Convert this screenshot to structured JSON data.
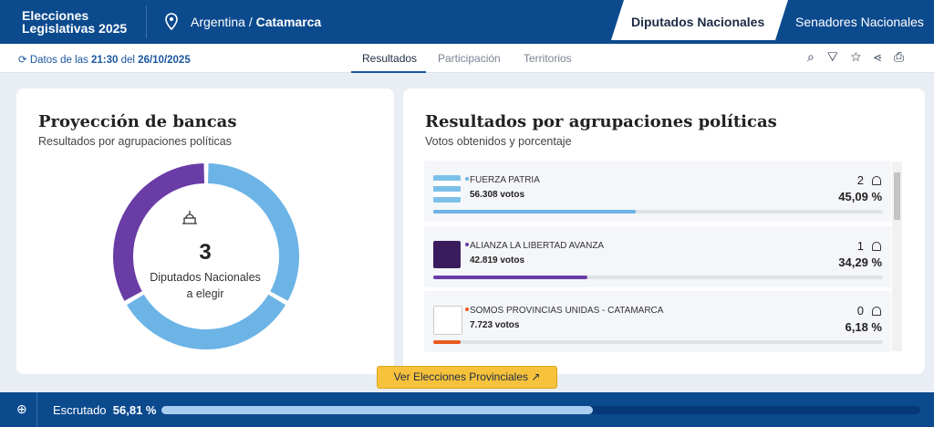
{
  "header": {
    "brand_line1": "Elecciones",
    "brand_line2": "Legislativas 2025",
    "country": "Argentina",
    "separator": "/",
    "province": "Catamarca",
    "tabs": [
      "Diputados Nacionales",
      "Senadores Nacionales"
    ]
  },
  "update": {
    "prefix": "Datos de las",
    "time": "21:30",
    "mid": "del",
    "date": "26/10/2025"
  },
  "nav": [
    "Resultados",
    "Participación",
    "Territorios"
  ],
  "seats_card": {
    "title": "Proyección de bancas",
    "subtitle": "Resultados por agrupaciones políticas",
    "total": 3,
    "caption_line1": "Diputados Nacionales",
    "caption_line2": "a elegir"
  },
  "results_card": {
    "title": "Resultados por agrupaciones políticas",
    "subtitle": "Votos obtenidos y porcentaje",
    "parties": [
      {
        "name": "FUERZA PATRIA",
        "votes": "56.308 votos",
        "seats": 2,
        "percent": 45.09,
        "percent_label": "45,09 %",
        "color": "#6cb4e6"
      },
      {
        "name": "ALIANZA LA LIBERTAD AVANZA",
        "votes": "42.819 votos",
        "seats": 1,
        "percent": 34.29,
        "percent_label": "34,29 %",
        "color": "#6a3ca6"
      },
      {
        "name": "SOMOS PROVINCIAS UNIDAS - CATAMARCA",
        "votes": "7.723 votos",
        "seats": 0,
        "percent": 6.18,
        "percent_label": "6,18 %",
        "color": "#ea5b1d"
      }
    ]
  },
  "button": "Ver Elecciones Provinciales",
  "scrutiny": {
    "label": "Escrutado",
    "value": 56.81,
    "value_label": "56,81 %"
  }
}
